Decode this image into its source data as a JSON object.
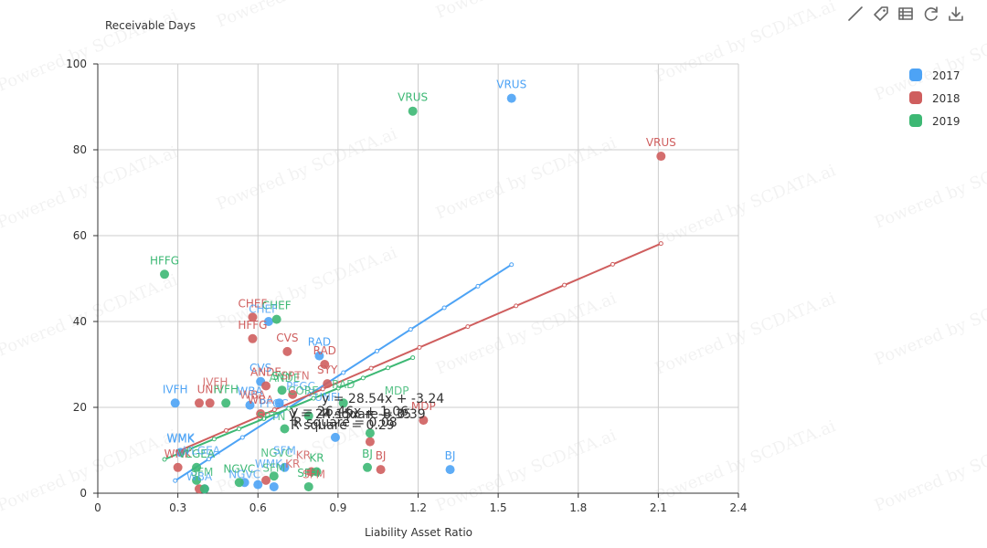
{
  "chart_data": {
    "type": "scatter",
    "title": "",
    "ylabel_top": "Receivable Days",
    "xlabel": "Liability Asset Ratio",
    "xlim": [
      0,
      2.4
    ],
    "ylim": [
      0,
      100
    ],
    "x_ticks": [
      "0",
      "0.3",
      "0.6",
      "0.9",
      "1.2",
      "1.5",
      "1.8",
      "2.1",
      "2.4"
    ],
    "y_ticks": [
      "0",
      "20",
      "40",
      "60",
      "80",
      "100"
    ],
    "grid": true,
    "legend_position": "top-right",
    "watermark": "Powered by SCDATA.ai",
    "toolbar": [
      "line-tool-icon",
      "tag-icon",
      "table-icon",
      "refresh-icon",
      "download-icon"
    ],
    "series": [
      {
        "name": "2017",
        "color": "#4da3f5",
        "points": [
          {
            "x": 1.55,
            "y": 92,
            "label": "VRUS"
          },
          {
            "x": 1.32,
            "y": 5.5,
            "label": "BJ"
          },
          {
            "x": 0.83,
            "y": 32,
            "label": "RAD"
          },
          {
            "x": 0.61,
            "y": 26,
            "label": "CVS"
          },
          {
            "x": 0.29,
            "y": 21,
            "label": "IVFH"
          },
          {
            "x": 0.31,
            "y": 9.5,
            "label": "WMK"
          },
          {
            "x": 0.57,
            "y": 20.5,
            "label": "WBA"
          },
          {
            "x": 0.89,
            "y": 13
          },
          {
            "x": 0.64,
            "y": 40
          },
          {
            "x": 0.7,
            "y": 6
          },
          {
            "x": 0.6,
            "y": 2
          },
          {
            "x": 0.55,
            "y": 2.5
          },
          {
            "x": 0.68,
            "y": 21
          },
          {
            "x": 0.4,
            "y": 1
          },
          {
            "x": 0.66,
            "y": 1.5
          }
        ],
        "trend": {
          "x0": 0.29,
          "x1": 1.55,
          "equation": "y = 28.54x + -3.24",
          "r_square": "R square = 0.29"
        }
      },
      {
        "name": "2018",
        "color": "#cf5e5e",
        "points": [
          {
            "x": 2.11,
            "y": 78.5,
            "label": "VRUS"
          },
          {
            "x": 0.58,
            "y": 41,
            "label": "CHEF"
          },
          {
            "x": 0.58,
            "y": 36,
            "label": "HFFG"
          },
          {
            "x": 0.71,
            "y": 33,
            "label": "CVS"
          },
          {
            "x": 0.85,
            "y": 30,
            "label": "RAD"
          },
          {
            "x": 0.86,
            "y": 25.5,
            "label": "SYY"
          },
          {
            "x": 0.63,
            "y": 25,
            "label": "ANDE"
          },
          {
            "x": 0.42,
            "y": 21,
            "label": "UNFI"
          },
          {
            "x": 0.38,
            "y": 21
          },
          {
            "x": 0.61,
            "y": 18.5,
            "label": "WBA"
          },
          {
            "x": 0.3,
            "y": 6,
            "label": "WMK"
          },
          {
            "x": 1.06,
            "y": 5.5,
            "label": "BJ"
          },
          {
            "x": 1.22,
            "y": 17,
            "label": "MDP"
          },
          {
            "x": 1.02,
            "y": 12
          },
          {
            "x": 0.8,
            "y": 5
          },
          {
            "x": 0.63,
            "y": 3
          },
          {
            "x": 0.38,
            "y": 1
          },
          {
            "x": 0.73,
            "y": 23
          }
        ],
        "trend": {
          "x0": 0.3,
          "x1": 2.11,
          "equation": "y = 26.46x + 1.06",
          "r_square": "R square = 0.39"
        }
      },
      {
        "name": "2019",
        "color": "#3db874",
        "points": [
          {
            "x": 1.18,
            "y": 89,
            "label": "VRUS"
          },
          {
            "x": 0.25,
            "y": 51,
            "label": "HFFG"
          },
          {
            "x": 0.67,
            "y": 40.5,
            "label": "CHEF"
          },
          {
            "x": 0.48,
            "y": 21,
            "label": "IVFH"
          },
          {
            "x": 0.69,
            "y": 24,
            "label": "SYY"
          },
          {
            "x": 1.01,
            "y": 6,
            "label": "BJ"
          },
          {
            "x": 0.37,
            "y": 6,
            "label": "VLGEA"
          },
          {
            "x": 0.53,
            "y": 2.5,
            "label": "NGVC"
          },
          {
            "x": 0.79,
            "y": 1.5,
            "label": "SFM"
          },
          {
            "x": 0.82,
            "y": 5,
            "label": "KR"
          },
          {
            "x": 0.7,
            "y": 15
          },
          {
            "x": 0.79,
            "y": 18
          },
          {
            "x": 0.92,
            "y": 21
          },
          {
            "x": 1.02,
            "y": 14
          },
          {
            "x": 0.66,
            "y": 4
          },
          {
            "x": 0.4,
            "y": 1
          },
          {
            "x": 0.37,
            "y": 3
          }
        ],
        "trend": {
          "x0": 0.25,
          "x1": 1.18,
          "equation": "y = 24.15x + -8.35",
          "r_square": "R square = 0.08"
        }
      }
    ],
    "ghost_labels": [
      {
        "x": 0.31,
        "y": 12,
        "text": "WMK",
        "series": 0
      },
      {
        "x": 0.39,
        "y": 9,
        "text": "VLGEA",
        "series": 0
      },
      {
        "x": 0.58,
        "y": 22,
        "text": "WBA",
        "series": 1
      },
      {
        "x": 0.7,
        "y": 26,
        "text": "ANDE",
        "series": 2
      },
      {
        "x": 0.76,
        "y": 24,
        "text": "PFGC",
        "series": 0
      },
      {
        "x": 0.74,
        "y": 26.5,
        "text": "SPTN",
        "series": 1
      },
      {
        "x": 0.77,
        "y": 23,
        "text": "CORE",
        "series": 2
      },
      {
        "x": 0.86,
        "y": 21.5,
        "text": "UNFI",
        "series": 0
      },
      {
        "x": 0.92,
        "y": 24.5,
        "text": "RAD",
        "series": 2
      },
      {
        "x": 0.66,
        "y": 20,
        "text": "PFGC",
        "series": 0
      },
      {
        "x": 0.65,
        "y": 17,
        "text": "SPTN",
        "series": 2
      },
      {
        "x": 0.67,
        "y": 8.5,
        "text": "NGVC",
        "series": 2
      },
      {
        "x": 0.7,
        "y": 9,
        "text": "SFM",
        "series": 0
      },
      {
        "x": 0.77,
        "y": 8,
        "text": "KR",
        "series": 1
      },
      {
        "x": 0.64,
        "y": 6,
        "text": "WMK",
        "series": 0
      },
      {
        "x": 0.73,
        "y": 6,
        "text": "KR",
        "series": 1
      },
      {
        "x": 0.66,
        "y": 5,
        "text": "SFM",
        "series": 2
      },
      {
        "x": 0.38,
        "y": 3,
        "text": "WBA",
        "series": 0
      },
      {
        "x": 0.39,
        "y": 4,
        "text": "SFM",
        "series": 2
      },
      {
        "x": 0.55,
        "y": 3.5,
        "text": "NGVC",
        "series": 0
      },
      {
        "x": 0.81,
        "y": 3.5,
        "text": "SFM",
        "series": 1
      },
      {
        "x": 1.12,
        "y": 23,
        "text": "MDP",
        "series": 2
      },
      {
        "x": 0.62,
        "y": 42,
        "text": "CHEF",
        "series": 0
      },
      {
        "x": 0.44,
        "y": 25,
        "text": "IVFH",
        "series": 1
      }
    ]
  }
}
